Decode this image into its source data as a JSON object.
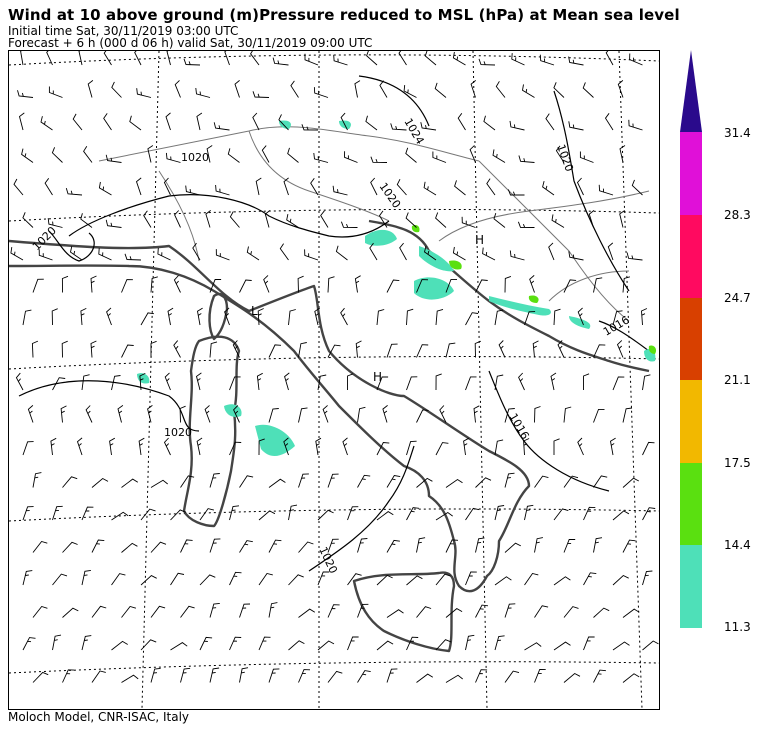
{
  "header": {
    "title": "Wind  at 10 above ground (m)Pressure reduced to MSL (hPa)  at Mean sea level",
    "initial_time": "Initial time  Sat, 30/11/2019  03:00 UTC",
    "forecast": "Forecast  +   6 h  (000 d 06 h)  valid Sat, 30/11/2019 09:00 UTC"
  },
  "footer": {
    "credit": "Moloch Model, CNR-ISAC, Italy"
  },
  "colorbar": {
    "tick_labels": [
      "31.4",
      "28.3",
      "24.7",
      "21.1",
      "17.5",
      "14.4",
      "11.3"
    ],
    "colors": [
      "#2a0a8c",
      "#e010d8",
      "#ff0a60",
      "#d84000",
      "#f2b800",
      "#5ae010",
      "#4ee0b8"
    ]
  },
  "isobars": {
    "labels": [
      "1024",
      "1020",
      "1020",
      "1020",
      "1020",
      "1016",
      "1016",
      "1020",
      "1020"
    ]
  },
  "pressure_centers": {
    "high": "H",
    "low": "L"
  },
  "colors": {
    "land_border": "#444444",
    "grid": "#000000",
    "isobar": "#000000",
    "wind_barb": "#000000"
  }
}
